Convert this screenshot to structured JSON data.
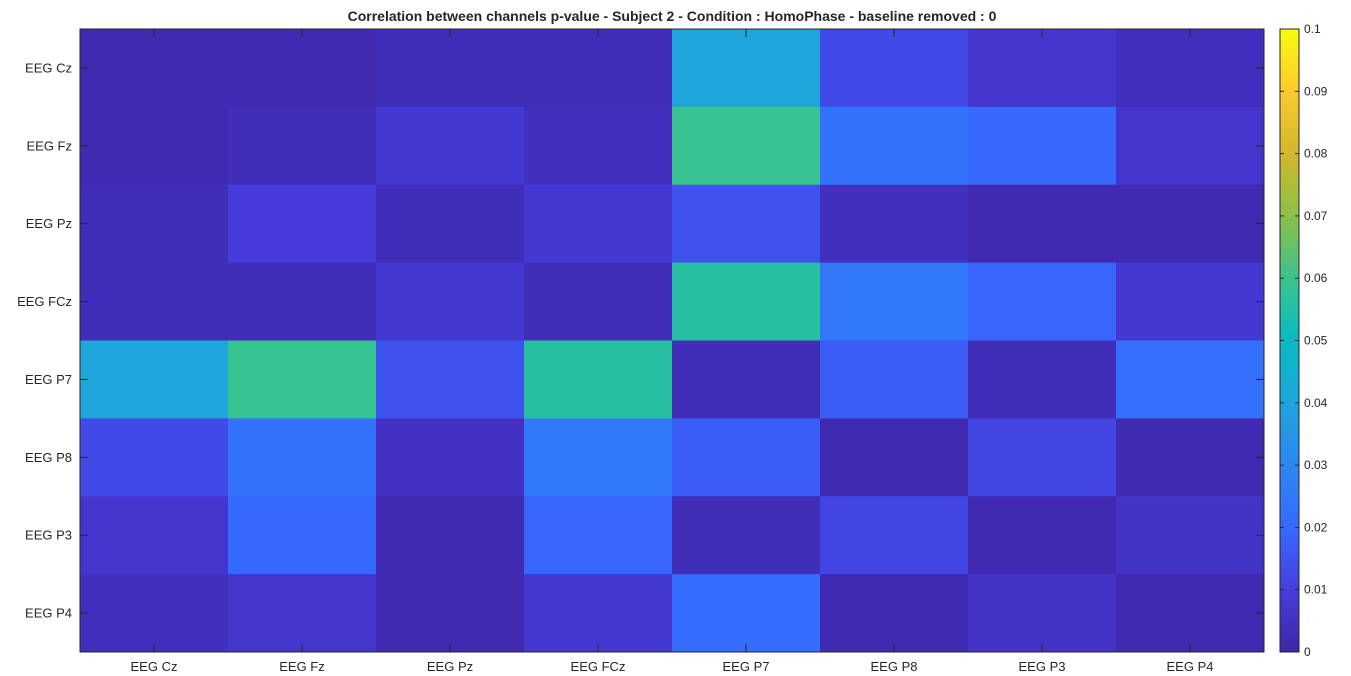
{
  "chart_data": {
    "type": "heatmap",
    "title": "Correlation between channels p-value - Subject 2 - Condition : HomoPhase - baseline removed : 0",
    "xlabel": "",
    "ylabel": "",
    "x_categories": [
      "EEG Cz",
      "EEG Fz",
      "EEG Pz",
      "EEG FCz",
      "EEG P7",
      "EEG P8",
      "EEG P3",
      "EEG P4"
    ],
    "y_categories": [
      "EEG Cz",
      "EEG Fz",
      "EEG Pz",
      "EEG FCz",
      "EEG P7",
      "EEG P8",
      "EEG P3",
      "EEG P4"
    ],
    "values": [
      [
        0.002,
        0.002,
        0.003,
        0.003,
        0.04,
        0.013,
        0.007,
        0.004
      ],
      [
        0.002,
        0.003,
        0.008,
        0.004,
        0.059,
        0.023,
        0.02,
        0.007
      ],
      [
        0.003,
        0.01,
        0.003,
        0.008,
        0.015,
        0.004,
        0.002,
        0.002
      ],
      [
        0.003,
        0.003,
        0.008,
        0.003,
        0.056,
        0.025,
        0.019,
        0.008
      ],
      [
        0.04,
        0.059,
        0.015,
        0.056,
        0.003,
        0.017,
        0.003,
        0.022
      ],
      [
        0.013,
        0.023,
        0.005,
        0.025,
        0.017,
        0.002,
        0.012,
        0.002
      ],
      [
        0.007,
        0.02,
        0.002,
        0.019,
        0.003,
        0.012,
        0.002,
        0.006
      ],
      [
        0.004,
        0.007,
        0.002,
        0.008,
        0.021,
        0.002,
        0.006,
        0.002
      ]
    ],
    "colormap": "parula",
    "clim": [
      0,
      0.1
    ],
    "colorbar_ticks": [
      0,
      0.01,
      0.02,
      0.03,
      0.04,
      0.05,
      0.06,
      0.07,
      0.08,
      0.09,
      0.1
    ],
    "colorbar_tick_labels": [
      "0",
      "0.01",
      "0.02",
      "0.03",
      "0.04",
      "0.05",
      "0.06",
      "0.07",
      "0.08",
      "0.09",
      "0.1"
    ],
    "grid": false
  }
}
